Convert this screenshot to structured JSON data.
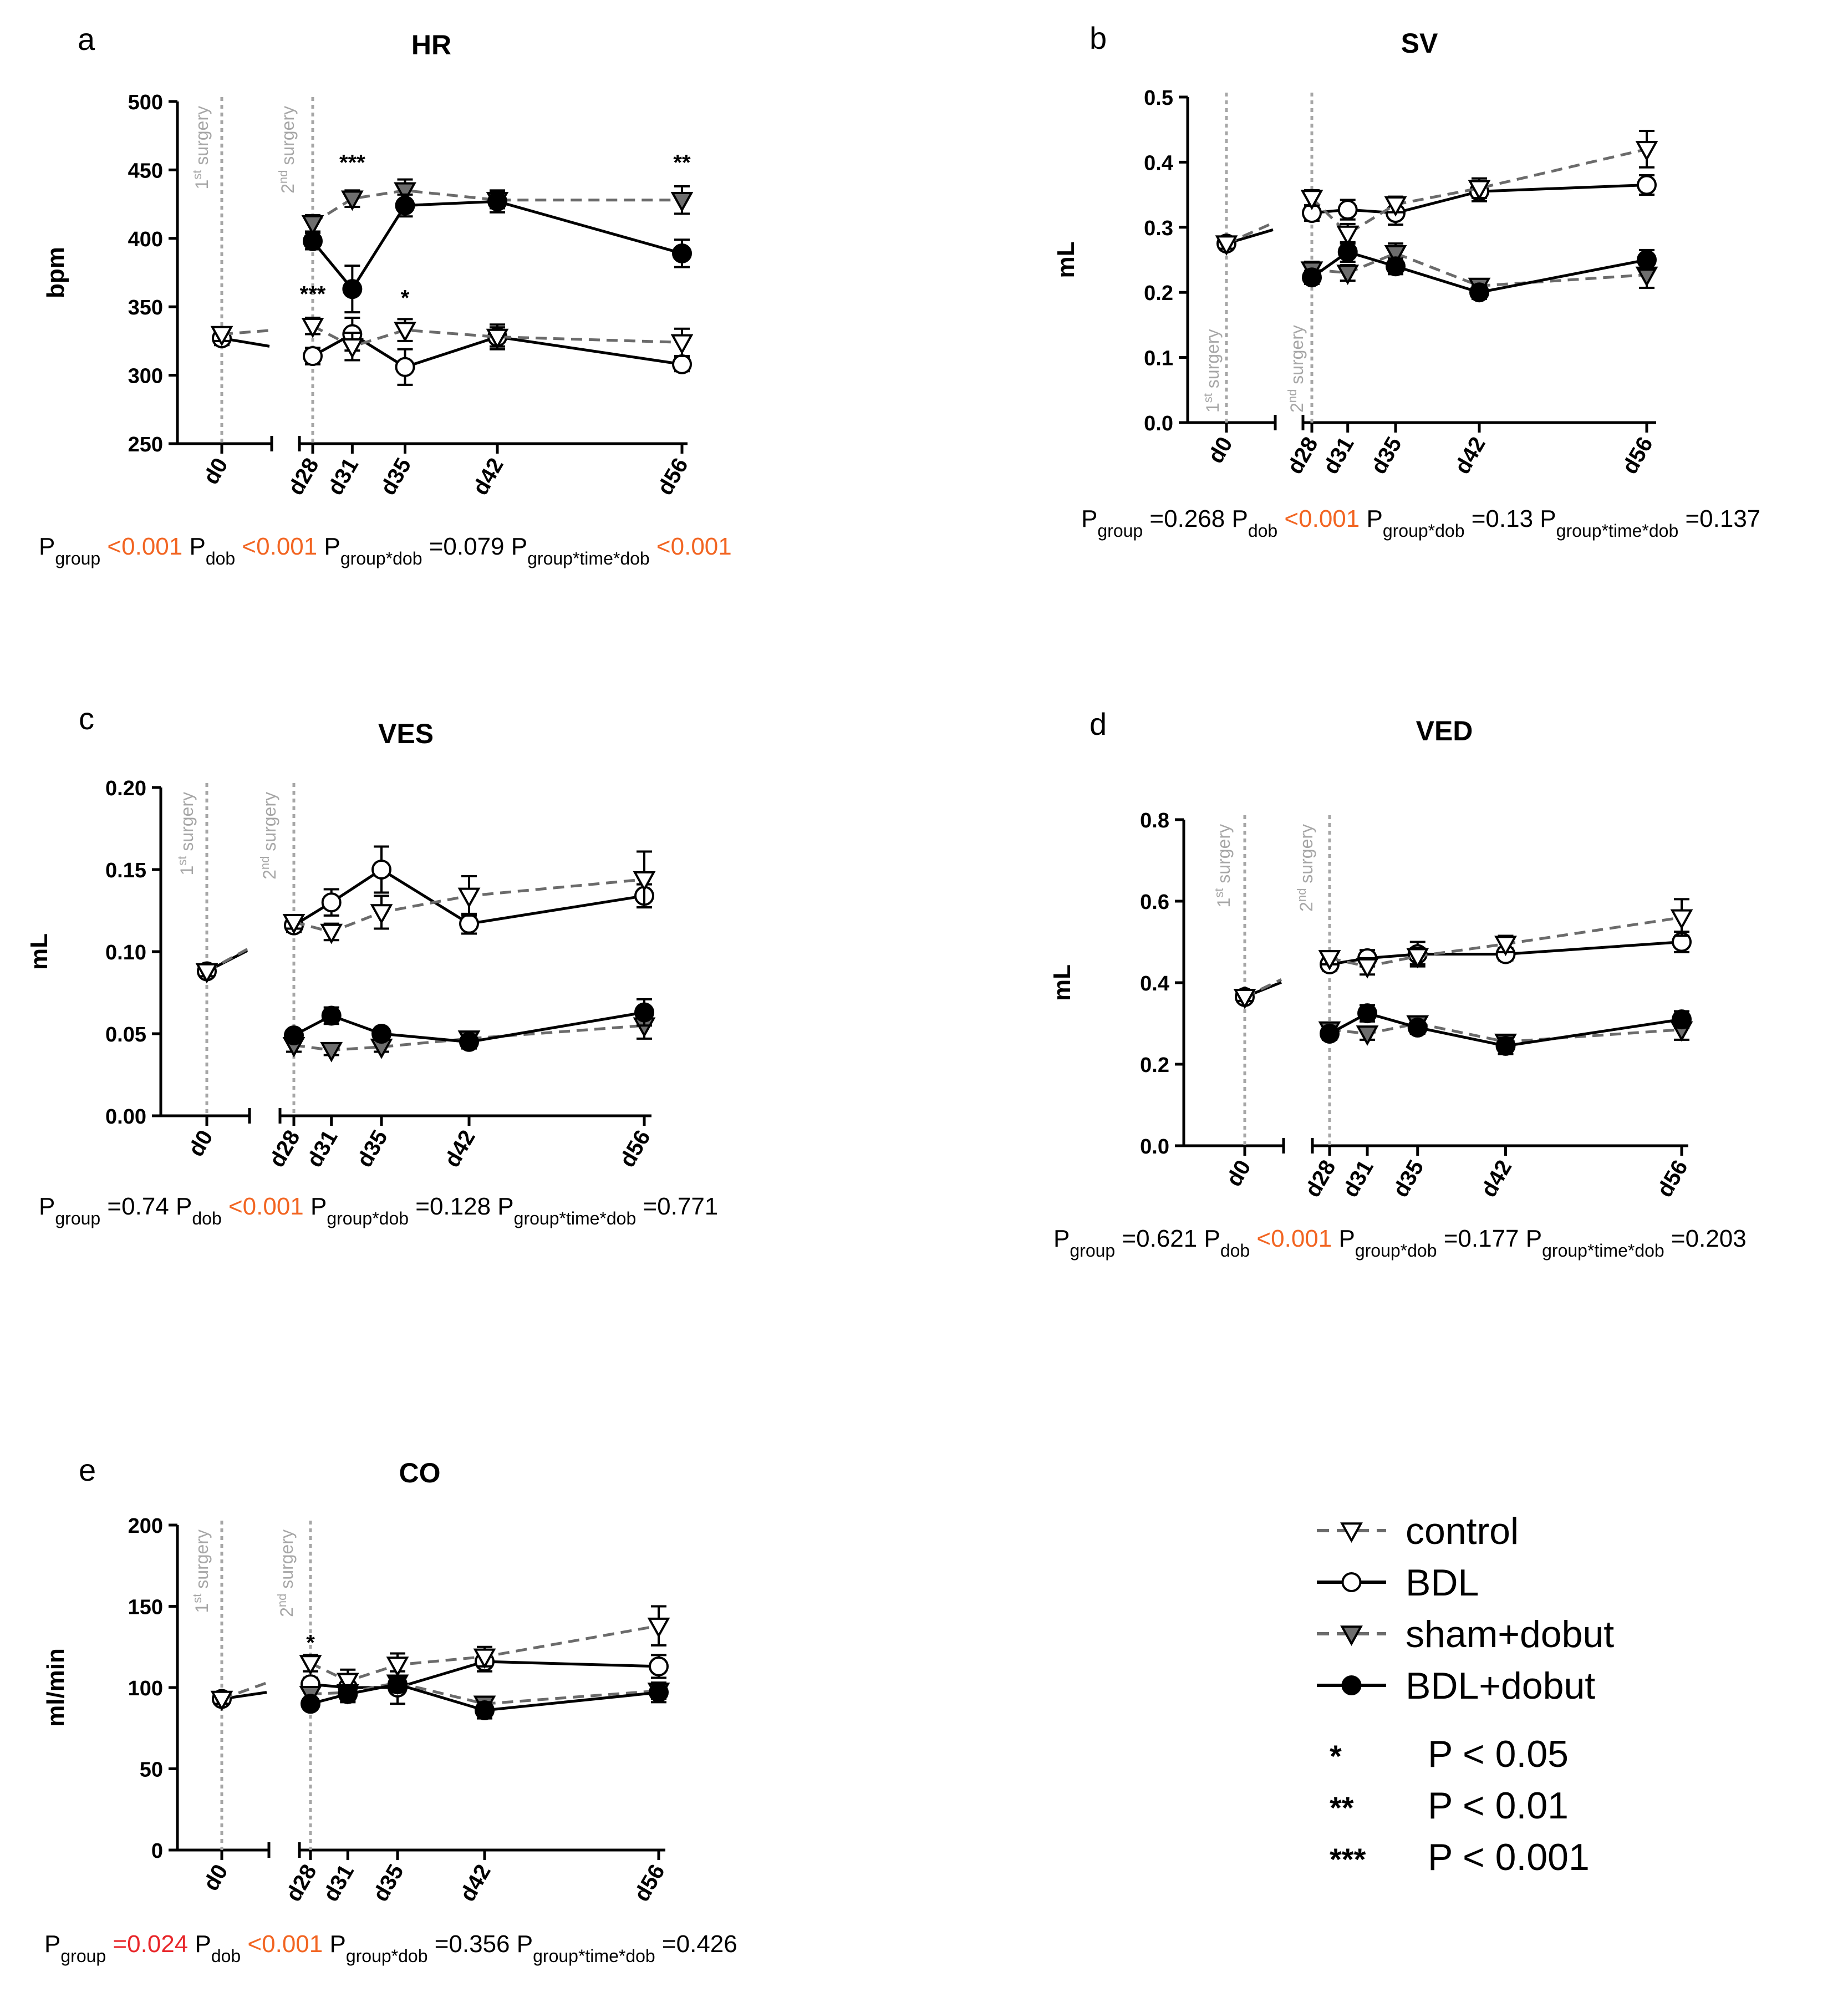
{
  "colors": {
    "black": "#000000",
    "gray": "#6b6b6b",
    "sham_fill": "#6e6e6e",
    "vline": "#a6a6a6",
    "orange": "#f26522",
    "red": "#e8262a"
  },
  "chart_data": [
    {
      "id": "a",
      "panel_letter": "a",
      "type": "line",
      "title": "HR",
      "ylabel": "bpm",
      "ylim": [
        250,
        500
      ],
      "yticks": [
        250,
        300,
        350,
        400,
        450,
        500
      ],
      "ytick_labels": [
        "250",
        "300",
        "350",
        "400",
        "450",
        "500"
      ],
      "x": [
        0,
        28,
        31,
        35,
        42,
        56
      ],
      "xtick_labels": [
        "d0",
        "d28",
        "d31",
        "d35",
        "d42",
        "d56"
      ],
      "surgery_labels": [
        "1st surgery",
        "2nd surgery"
      ],
      "series": [
        {
          "name": "control",
          "values": [
            330,
            336,
            321,
            333,
            328,
            324
          ],
          "errors": [
            5,
            6,
            10,
            8,
            7,
            10
          ]
        },
        {
          "name": "BDL",
          "values": [
            327,
            314,
            330,
            306,
            328,
            308
          ],
          "errors": [
            5,
            6,
            12,
            13,
            9,
            5
          ]
        },
        {
          "name": "sham+dobut",
          "values": [
            null,
            411,
            429,
            435,
            428,
            428
          ],
          "errors": [
            0,
            6,
            6,
            8,
            6,
            10
          ]
        },
        {
          "name": "BDL+dobut",
          "values": [
            null,
            398,
            363,
            424,
            427,
            389
          ],
          "errors": [
            0,
            6,
            17,
            8,
            8,
            10
          ]
        }
      ],
      "annotations": [
        {
          "text": "***",
          "x": 28,
          "y": 354
        },
        {
          "text": "***",
          "x": 31,
          "y": 450
        },
        {
          "text": "*",
          "x": 35,
          "y": 351
        },
        {
          "text": "**",
          "x": 56,
          "y": 450
        }
      ],
      "stats": [
        {
          "sub": "group",
          "pre": "",
          "value": "<0.001",
          "color": "orange"
        },
        {
          "sub": "dob",
          "pre": "",
          "value": "<0.001",
          "color": "orange"
        },
        {
          "sub": "group*dob",
          "pre": "",
          "value": "=0.079",
          "color": "black"
        },
        {
          "sub": "group*time*dob",
          "pre": "",
          "value": "<0.001",
          "color": "orange"
        }
      ]
    },
    {
      "id": "b",
      "panel_letter": "b",
      "type": "line",
      "title": "SV",
      "ylabel": "mL",
      "ylim": [
        0,
        0.5
      ],
      "yticks": [
        0,
        0.1,
        0.2,
        0.3,
        0.4,
        0.5
      ],
      "ytick_labels": [
        "0.0",
        "0.1",
        "0.2",
        "0.3",
        "0.4",
        "0.5"
      ],
      "x": [
        0,
        28,
        31,
        35,
        42,
        56
      ],
      "xtick_labels": [
        "d0",
        "d28",
        "d31",
        "d35",
        "d42",
        "d56"
      ],
      "surgery_labels": [
        "1st surgery",
        "2nd surgery"
      ],
      "series": [
        {
          "name": "control",
          "values": [
            0.275,
            0.345,
            0.29,
            0.335,
            0.36,
            0.42
          ],
          "errors": [
            0.008,
            0.012,
            0.015,
            0.012,
            0.015,
            0.028
          ]
        },
        {
          "name": "BDL",
          "values": [
            0.275,
            0.322,
            0.327,
            0.322,
            0.355,
            0.365
          ],
          "errors": [
            0.008,
            0.012,
            0.015,
            0.018,
            0.015,
            0.015
          ]
        },
        {
          "name": "sham+dobut",
          "values": [
            null,
            0.235,
            0.23,
            0.26,
            0.21,
            0.227
          ],
          "errors": [
            0,
            0.012,
            0.012,
            0.015,
            0.008,
            0.02
          ]
        },
        {
          "name": "BDL+dobut",
          "values": [
            null,
            0.223,
            0.262,
            0.24,
            0.2,
            0.25
          ],
          "errors": [
            0,
            0.01,
            0.015,
            0.012,
            0.01,
            0.015
          ]
        }
      ],
      "annotations": [],
      "stats": [
        {
          "sub": "group",
          "pre": "",
          "value": "=0.268",
          "color": "black"
        },
        {
          "sub": "dob",
          "pre": "",
          "value": "<0.001",
          "color": "orange"
        },
        {
          "sub": "group*dob",
          "pre": "",
          "value": "=0.13",
          "color": "black"
        },
        {
          "sub": "group*time*dob",
          "pre": "",
          "value": "=0.137",
          "color": "black"
        }
      ]
    },
    {
      "id": "c",
      "panel_letter": "c",
      "type": "line",
      "title": "VES",
      "ylabel": "mL",
      "ylim": [
        0,
        0.2
      ],
      "yticks": [
        0,
        0.05,
        0.1,
        0.15,
        0.2
      ],
      "ytick_labels": [
        "0.00",
        "0.05",
        "0.10",
        "0.15",
        "0.20"
      ],
      "x": [
        0,
        28,
        31,
        35,
        42,
        56
      ],
      "xtick_labels": [
        "d0",
        "d28",
        "d31",
        "d35",
        "d42",
        "d56"
      ],
      "surgery_labels": [
        "1st surgery",
        "2nd surgery"
      ],
      "series": [
        {
          "name": "control",
          "values": [
            0.088,
            0.118,
            0.112,
            0.124,
            0.134,
            0.144
          ],
          "errors": [
            0.003,
            0.004,
            0.005,
            0.01,
            0.012,
            0.017
          ]
        },
        {
          "name": "BDL",
          "values": [
            0.088,
            0.116,
            0.13,
            0.15,
            0.117,
            0.134
          ],
          "errors": [
            0.003,
            0.004,
            0.008,
            0.014,
            0.006,
            0.007
          ]
        },
        {
          "name": "sham+dobut",
          "values": [
            null,
            0.043,
            0.04,
            0.042,
            0.047,
            0.055
          ],
          "errors": [
            0,
            0.004,
            0.003,
            0.003,
            0.004,
            0.008
          ]
        },
        {
          "name": "BDL+dobut",
          "values": [
            null,
            0.049,
            0.061,
            0.05,
            0.045,
            0.063
          ],
          "errors": [
            0,
            0.003,
            0.005,
            0.003,
            0.004,
            0.008
          ]
        }
      ],
      "annotations": [],
      "stats": [
        {
          "sub": "group",
          "pre": "",
          "value": "=0.74",
          "color": "black"
        },
        {
          "sub": "dob",
          "pre": "",
          "value": "<0.001",
          "color": "orange"
        },
        {
          "sub": "group*dob",
          "pre": "",
          "value": "=0.128",
          "color": "black"
        },
        {
          "sub": "group*time*dob",
          "pre": "",
          "value": "=0.771",
          "color": "black"
        }
      ]
    },
    {
      "id": "d",
      "panel_letter": "d",
      "type": "line",
      "title": "VED",
      "ylabel": "mL",
      "ylim": [
        0,
        0.8
      ],
      "yticks": [
        0,
        0.2,
        0.4,
        0.6,
        0.8
      ],
      "ytick_labels": [
        "0.0",
        "0.2",
        "0.4",
        "0.6",
        "0.8"
      ],
      "x": [
        0,
        28,
        31,
        35,
        42,
        56
      ],
      "xtick_labels": [
        "d0",
        "d28",
        "d31",
        "d35",
        "d42",
        "d56"
      ],
      "surgery_labels": [
        "1st surgery",
        "2nd surgery"
      ],
      "series": [
        {
          "name": "control",
          "values": [
            0.365,
            0.46,
            0.44,
            0.465,
            0.495,
            0.56
          ],
          "errors": [
            0.01,
            0.015,
            0.02,
            0.02,
            0.02,
            0.045
          ]
        },
        {
          "name": "BDL",
          "values": [
            0.365,
            0.445,
            0.46,
            0.47,
            0.47,
            0.5
          ],
          "errors": [
            0.01,
            0.015,
            0.02,
            0.03,
            0.015,
            0.025
          ]
        },
        {
          "name": "sham+dobut",
          "values": [
            null,
            0.285,
            0.275,
            0.3,
            0.255,
            0.285
          ],
          "errors": [
            0,
            0.015,
            0.015,
            0.015,
            0.015,
            0.025
          ]
        },
        {
          "name": "BDL+dobut",
          "values": [
            null,
            0.275,
            0.325,
            0.29,
            0.245,
            0.31
          ],
          "errors": [
            0,
            0.015,
            0.02,
            0.015,
            0.02,
            0.02
          ]
        }
      ],
      "annotations": [],
      "stats": [
        {
          "sub": "group",
          "pre": "",
          "value": "=0.621",
          "color": "black"
        },
        {
          "sub": "dob",
          "pre": "",
          "value": "<0.001",
          "color": "orange"
        },
        {
          "sub": "group*dob",
          "pre": "",
          "value": "=0.177",
          "color": "black"
        },
        {
          "sub": "group*time*dob",
          "pre": "",
          "value": "=0.203",
          "color": "black"
        }
      ]
    },
    {
      "id": "e",
      "panel_letter": "e",
      "type": "line",
      "title": "CO",
      "ylabel": "ml/min",
      "ylim": [
        0,
        200
      ],
      "yticks": [
        0,
        50,
        100,
        150,
        200
      ],
      "ytick_labels": [
        "0",
        "50",
        "100",
        "150",
        "200"
      ],
      "x": [
        0,
        28,
        31,
        35,
        42,
        56
      ],
      "xtick_labels": [
        "d0",
        "d28",
        "d31",
        "d35",
        "d42",
        "d56"
      ],
      "surgery_labels": [
        "1st surgery",
        "2nd surgery"
      ],
      "series": [
        {
          "name": "control",
          "values": [
            93,
            115,
            104,
            114,
            119,
            138
          ],
          "errors": [
            3,
            5,
            7,
            7,
            6,
            12
          ]
        },
        {
          "name": "BDL",
          "values": [
            93,
            102,
            100,
            100,
            116,
            113
          ],
          "errors": [
            3,
            4,
            8,
            10,
            6,
            7
          ]
        },
        {
          "name": "sham+dobut",
          "values": [
            null,
            96,
            97,
            103,
            90,
            98
          ],
          "errors": [
            0,
            4,
            4,
            4,
            4,
            5
          ]
        },
        {
          "name": "BDL+dobut",
          "values": [
            null,
            90,
            96,
            102,
            86,
            97
          ],
          "errors": [
            0,
            3,
            5,
            5,
            5,
            6
          ]
        }
      ],
      "annotations": [
        {
          "text": "*",
          "x": 28,
          "y": 123
        }
      ],
      "stats": [
        {
          "sub": "group",
          "pre": "",
          "value": "=0.024",
          "color": "red"
        },
        {
          "sub": "dob",
          "pre": "",
          "value": "<0.001",
          "color": "orange"
        },
        {
          "sub": "group*dob",
          "pre": "",
          "value": "=0.356",
          "color": "black"
        },
        {
          "sub": "group*time*dob",
          "pre": "",
          "value": "=0.426",
          "color": "black"
        }
      ]
    }
  ],
  "legend": {
    "entries": [
      "control",
      "BDL",
      "sham+dobut",
      "BDL+dobut"
    ],
    "significance": [
      {
        "stars": "*",
        "label": "P < 0.05"
      },
      {
        "stars": "**",
        "label": "P < 0.01"
      },
      {
        "stars": "***",
        "label": "P < 0.001"
      }
    ]
  },
  "stat_prefix": "P"
}
